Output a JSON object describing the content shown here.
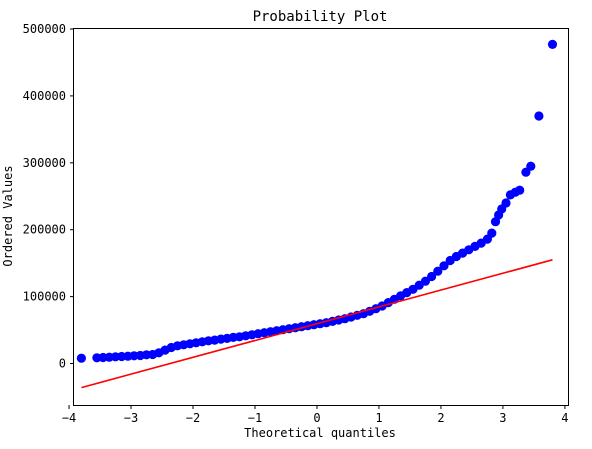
{
  "chart_data": {
    "type": "scatter",
    "title": "Probability Plot",
    "xlabel": "Theoretical quantiles",
    "ylabel": "Ordered Values",
    "xlim": [
      -3.92,
      4.05
    ],
    "ylim": [
      -62000,
      500000
    ],
    "xticks": [
      -4,
      -3,
      -2,
      -1,
      0,
      1,
      2,
      3,
      4
    ],
    "xtick_labels": [
      "−4",
      "−3",
      "−2",
      "−1",
      "0",
      "1",
      "2",
      "3",
      "4"
    ],
    "yticks": [
      0,
      100000,
      200000,
      300000,
      400000,
      500000
    ],
    "ytick_labels": [
      "0",
      "100000",
      "200000",
      "300000",
      "400000",
      "500000"
    ],
    "grid": false,
    "legend": "none",
    "series": [
      {
        "kind": "points",
        "color": "#0000ff",
        "x": [
          -3.8,
          -3.55,
          -3.45,
          -3.35,
          -3.25,
          -3.15,
          -3.05,
          -2.95,
          -2.85,
          -2.75,
          -2.65,
          -2.55,
          -2.45,
          -2.35,
          -2.25,
          -2.15,
          -2.05,
          -1.95,
          -1.85,
          -1.75,
          -1.65,
          -1.55,
          -1.45,
          -1.35,
          -1.25,
          -1.15,
          -1.05,
          -0.95,
          -0.85,
          -0.75,
          -0.65,
          -0.55,
          -0.45,
          -0.35,
          -0.25,
          -0.15,
          -0.05,
          0.05,
          0.15,
          0.25,
          0.35,
          0.45,
          0.55,
          0.65,
          0.75,
          0.85,
          0.95,
          1.05,
          1.15,
          1.25,
          1.35,
          1.45,
          1.55,
          1.65,
          1.75,
          1.85,
          1.95,
          2.05,
          2.15,
          2.25,
          2.35,
          2.45,
          2.55,
          2.65,
          2.75,
          2.82,
          2.88,
          2.93,
          2.98,
          3.05,
          3.12,
          3.2,
          3.27,
          3.37,
          3.45,
          3.58,
          3.8
        ],
        "y": [
          8000,
          8500,
          9000,
          9500,
          10000,
          10500,
          11000,
          11500,
          12000,
          13000,
          13500,
          16000,
          20000,
          24000,
          26500,
          28000,
          29500,
          31000,
          32500,
          34000,
          35000,
          36500,
          37500,
          39000,
          40000,
          41500,
          43000,
          44500,
          46000,
          47500,
          49000,
          50500,
          52000,
          53500,
          55000,
          56500,
          58000,
          59500,
          61000,
          63000,
          65000,
          67000,
          69500,
          72000,
          74500,
          78000,
          82000,
          86000,
          91000,
          96000,
          101000,
          106000,
          111000,
          117000,
          123000,
          130000,
          138000,
          146000,
          154000,
          160000,
          165000,
          170000,
          175000,
          180000,
          186000,
          195000,
          212000,
          222000,
          231000,
          240000,
          252000,
          256000,
          259000,
          286000,
          295000,
          370000,
          477000
        ]
      },
      {
        "kind": "fit-line",
        "color": "#ff0000",
        "x": [
          -3.8,
          3.8
        ],
        "y": [
          -36000,
          155000
        ]
      }
    ]
  }
}
